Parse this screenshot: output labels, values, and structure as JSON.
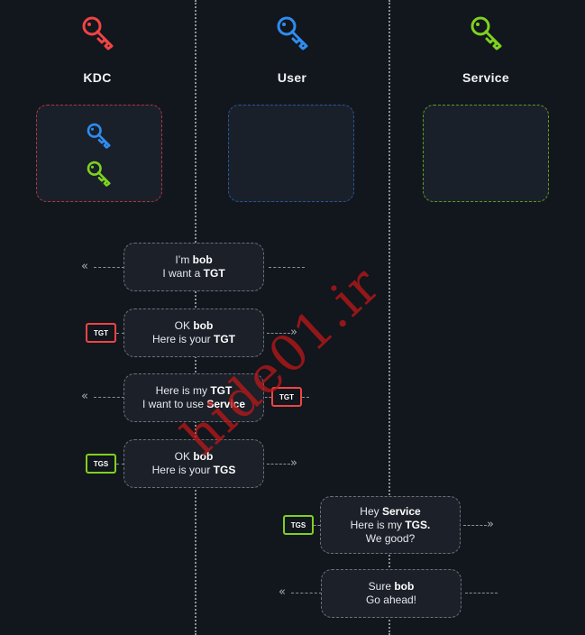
{
  "colors": {
    "kdc": "#ef4444",
    "user": "#2f8cf0",
    "service": "#7fd11f",
    "watermark": "#c01a1a"
  },
  "columns": {
    "kdc": {
      "title": "KDC",
      "icon": "key-icon"
    },
    "user": {
      "title": "User",
      "icon": "key-icon"
    },
    "service": {
      "title": "Service",
      "icon": "key-icon"
    }
  },
  "messages": [
    {
      "pre1": "I’m ",
      "b1": "bob",
      "post1": "",
      "pre2": "I want a ",
      "b2": "TGT",
      "post2": ""
    },
    {
      "pre1": "OK ",
      "b1": "bob",
      "post1": "",
      "pre2": "Here is your ",
      "b2": "TGT",
      "post2": ""
    },
    {
      "pre1": "Here is my ",
      "b1": "TGT",
      "post1": "",
      "pre2": "I want to use ",
      "b2": "Service",
      "post2": ""
    },
    {
      "pre1": "OK ",
      "b1": "bob",
      "post1": "",
      "pre2": "Here is your ",
      "b2": "TGS",
      "post2": ""
    },
    {
      "pre1": "Hey ",
      "b1": "Service",
      "post1": "",
      "pre2": "Here is my ",
      "b2": "TGS.",
      "post2": "",
      "line3": "We good?"
    },
    {
      "pre1": "Sure ",
      "b1": "bob",
      "post1": "",
      "pre2": "Go ahead!",
      "b2": "",
      "post2": ""
    }
  ],
  "tickets": {
    "tgt": "TGT",
    "tgs": "TGS"
  },
  "watermark": "hide01.ir"
}
